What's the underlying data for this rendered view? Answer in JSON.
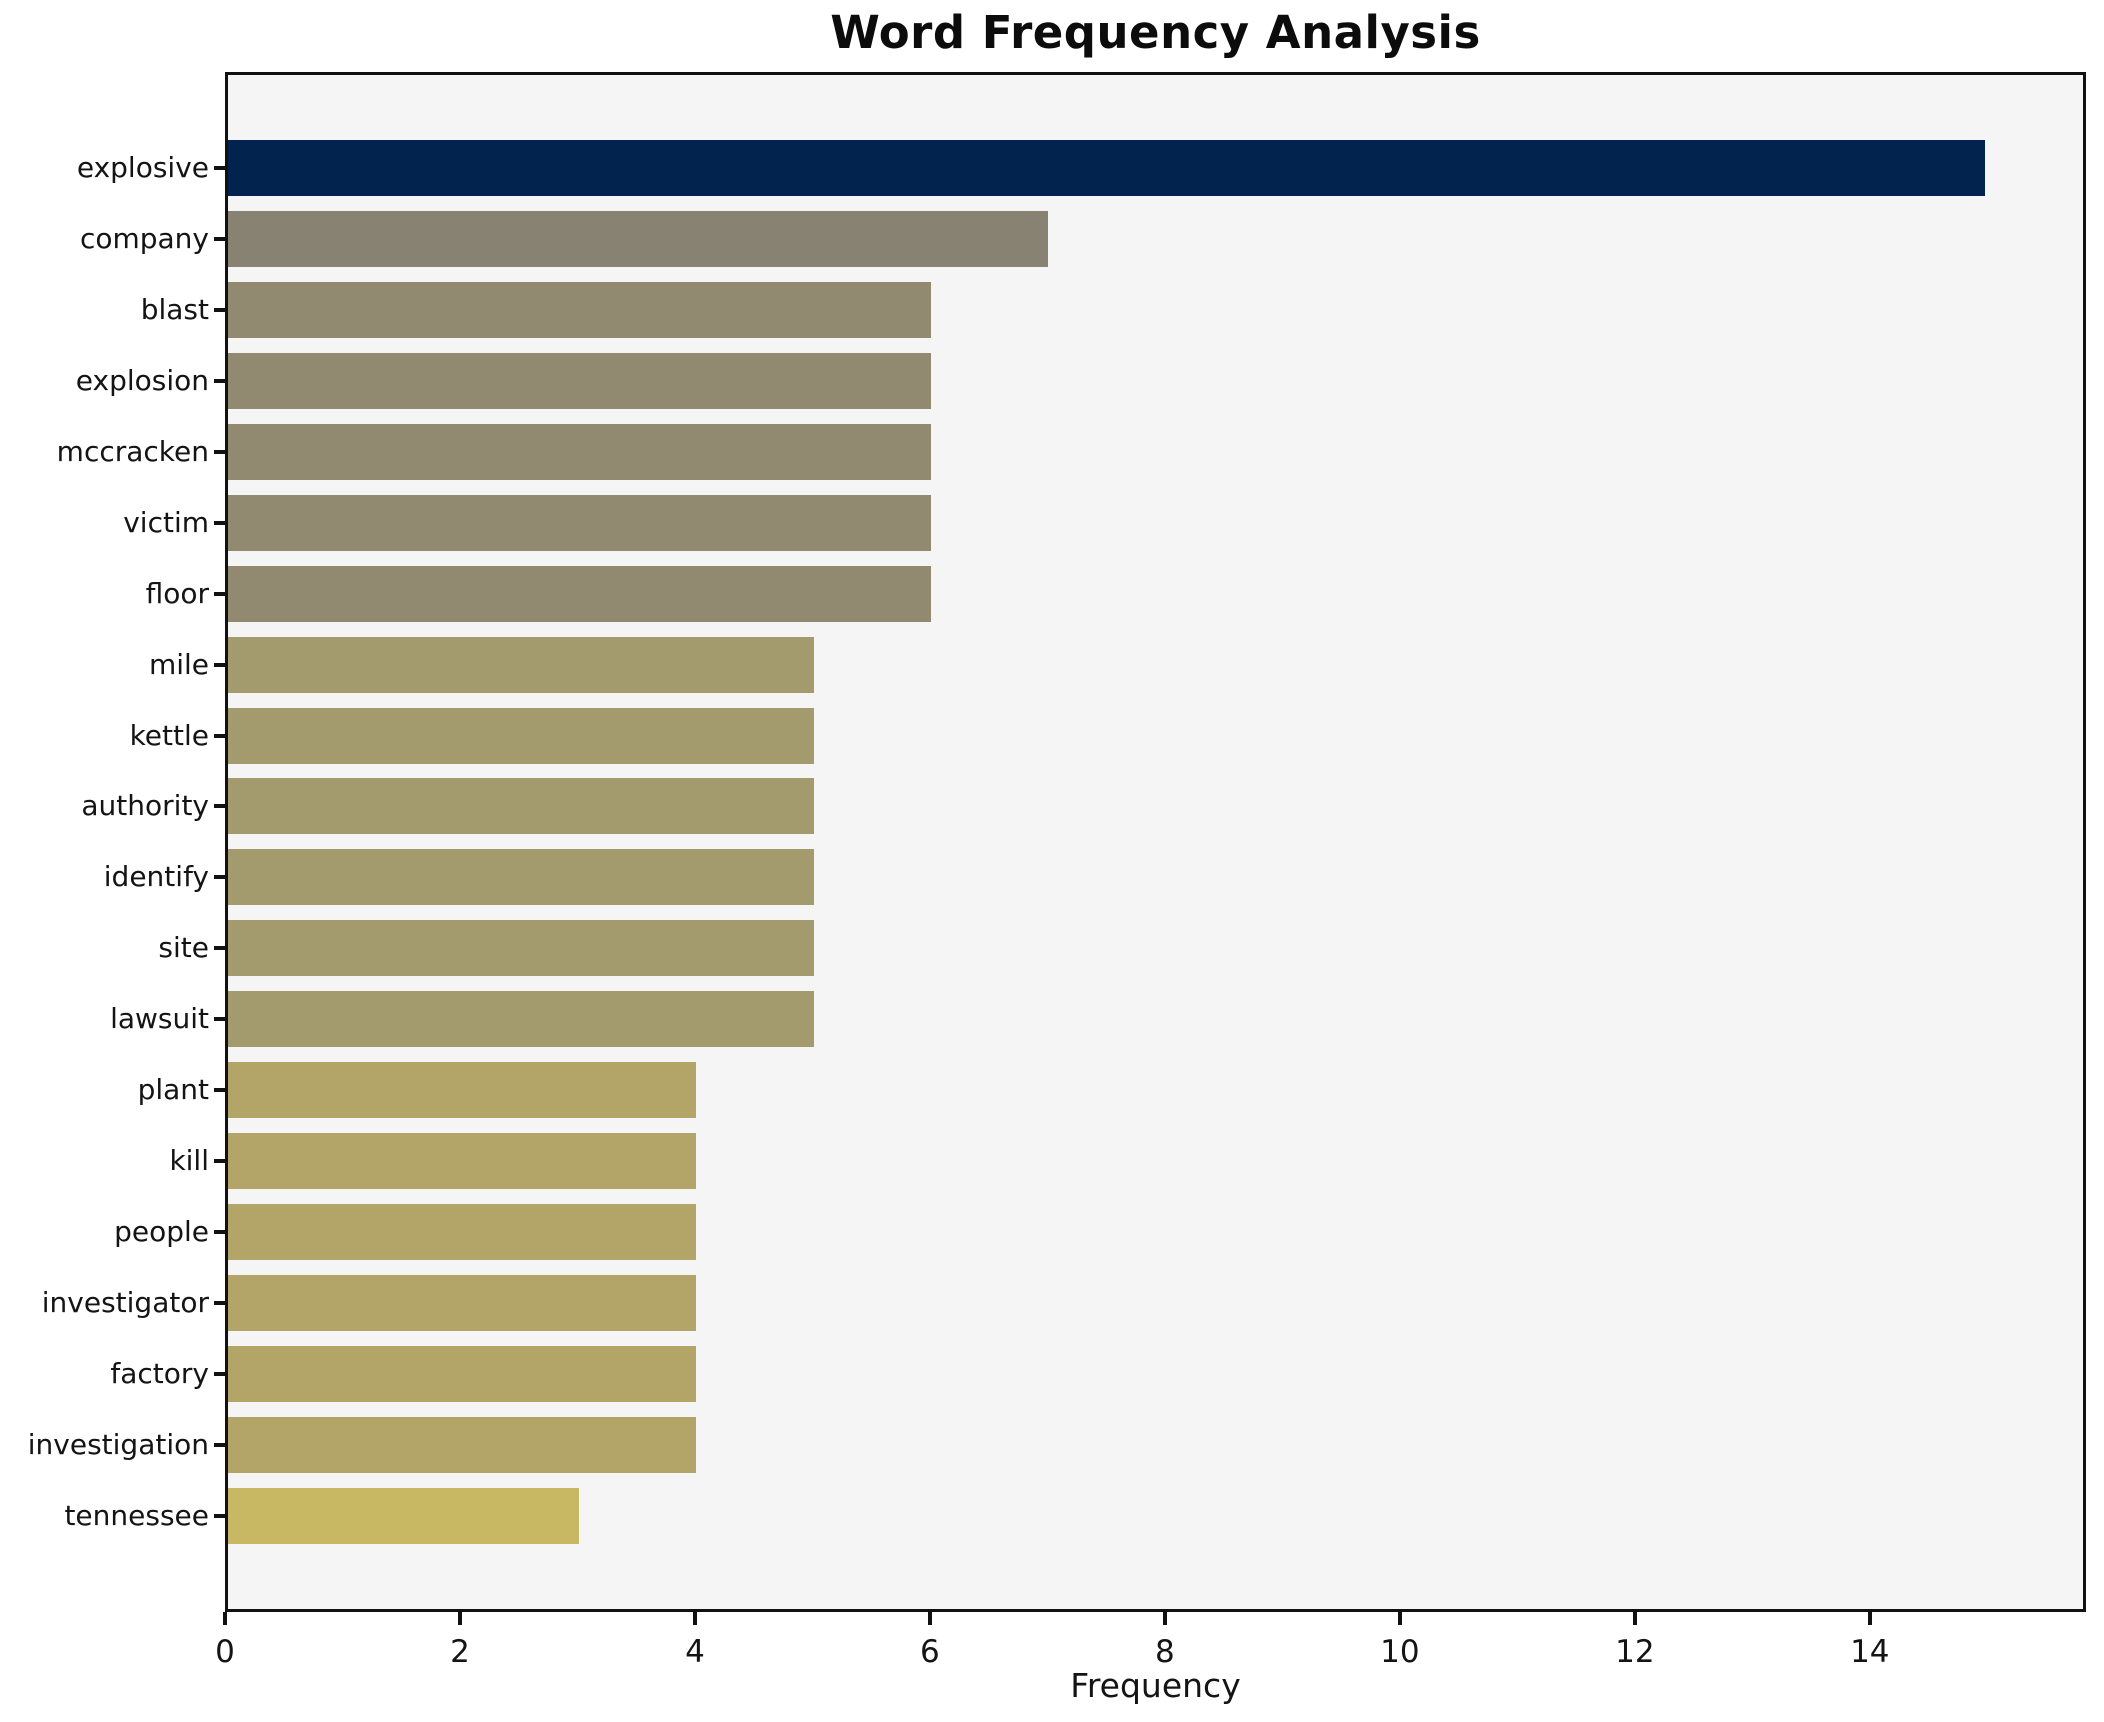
{
  "chart_data": {
    "type": "bar",
    "orientation": "horizontal",
    "title": "Word Frequency Analysis",
    "xlabel": "Frequency",
    "ylabel": "",
    "categories": [
      "explosive",
      "company",
      "blast",
      "explosion",
      "mccracken",
      "victim",
      "floor",
      "mile",
      "kettle",
      "authority",
      "identify",
      "site",
      "lawsuit",
      "plant",
      "kill",
      "people",
      "investigator",
      "factory",
      "investigation",
      "tennessee"
    ],
    "values": [
      15,
      7,
      6,
      6,
      6,
      6,
      6,
      5,
      5,
      5,
      5,
      5,
      5,
      4,
      4,
      4,
      4,
      4,
      4,
      3
    ],
    "bar_colors": [
      "#02234e",
      "#878271",
      "#918a70",
      "#918a70",
      "#918a70",
      "#918a70",
      "#918a70",
      "#a39b6e",
      "#a39b6e",
      "#a39b6e",
      "#a39b6e",
      "#a39b6e",
      "#a39b6e",
      "#b3a567",
      "#b3a567",
      "#b3a567",
      "#b3a567",
      "#b3a567",
      "#b3a567",
      "#c9b863"
    ],
    "xticks": [
      0,
      2,
      4,
      6,
      8,
      10,
      12,
      14
    ],
    "xlim": [
      0,
      15.84
    ],
    "grid": false,
    "legend": null,
    "plot_background": "#f5f5f6",
    "figure_background": "#ffffff",
    "spine_color": "#111111"
  }
}
